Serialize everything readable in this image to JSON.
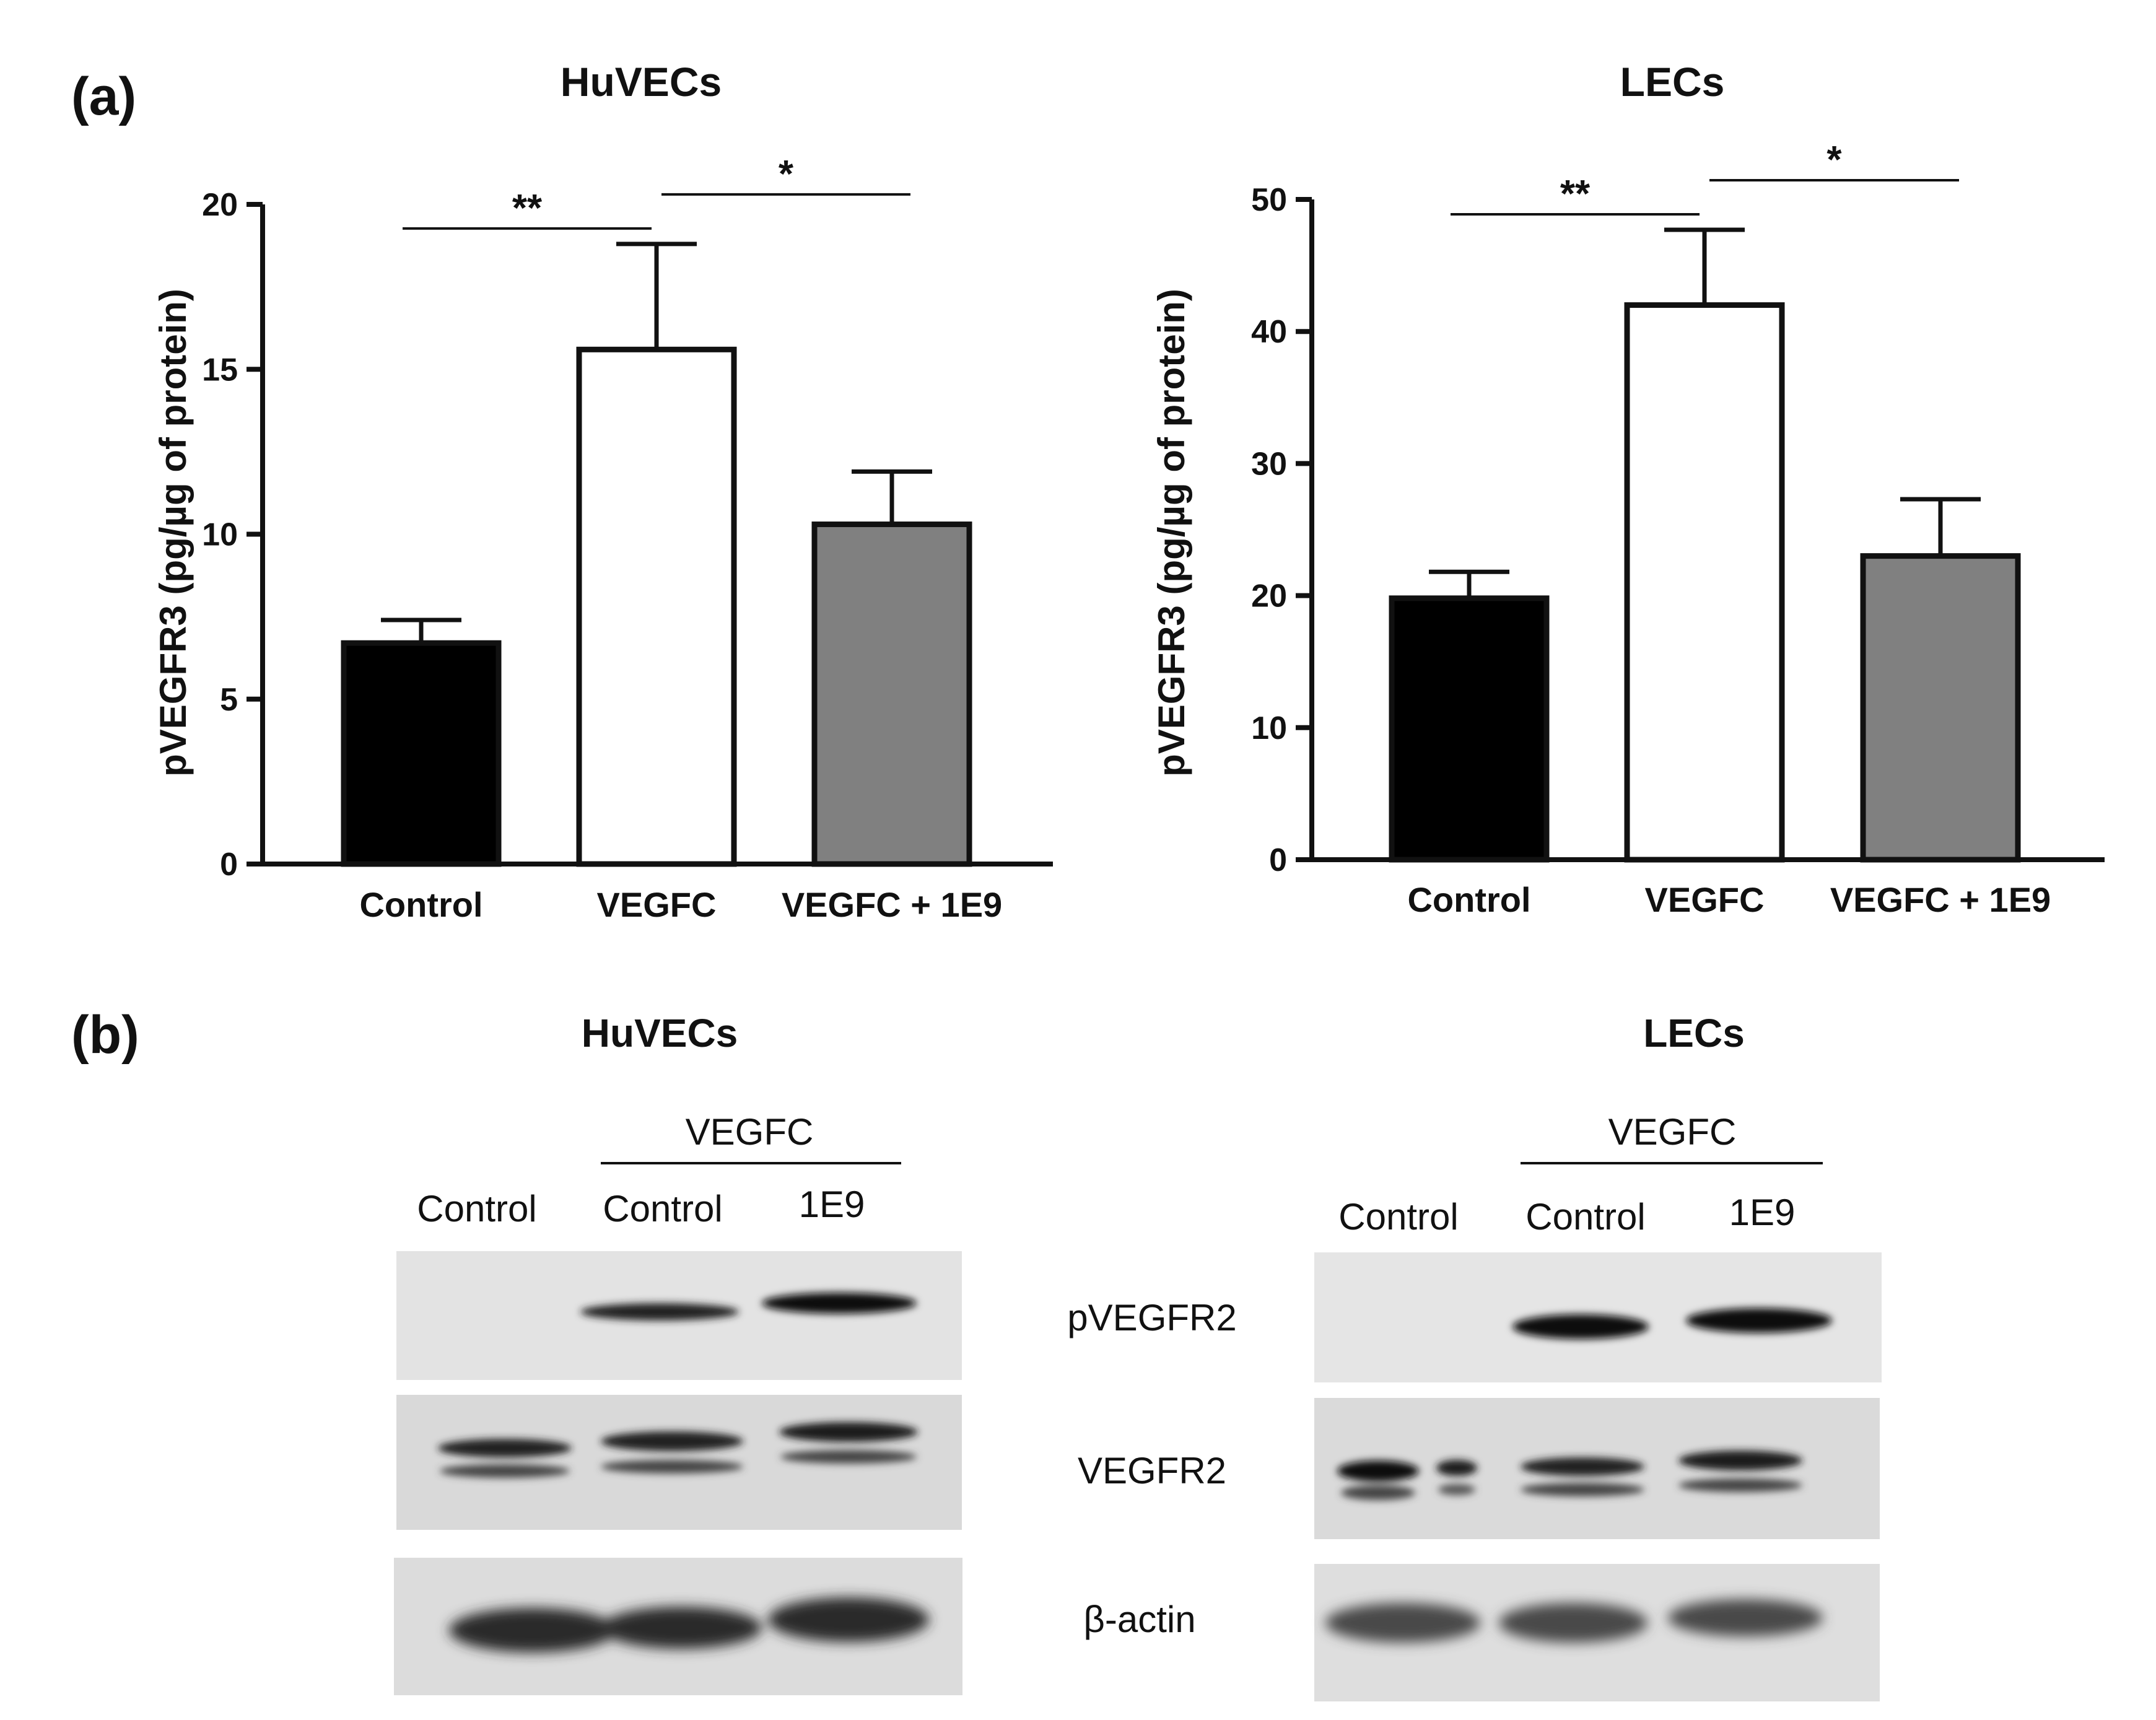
{
  "panel_a_label": "(a)",
  "panel_b_label": "(b)",
  "chart_data": [
    {
      "type": "bar",
      "title": "HuVECs",
      "ylabel": "pVEGFR3 (pg/µg of protein)",
      "xlabel": "",
      "categories": [
        "Control",
        "VEGFC",
        "VEGFC + 1E9"
      ],
      "values": [
        6.7,
        15.6,
        10.3
      ],
      "errors": [
        0.7,
        3.2,
        1.6
      ],
      "bar_colors": [
        "#000000",
        "#ffffff",
        "#808080"
      ],
      "ylim": [
        0,
        20
      ],
      "yticks": [
        0,
        5,
        10,
        15,
        20
      ],
      "grid": false,
      "significance": [
        {
          "from": 0,
          "to": 1,
          "label": "**"
        },
        {
          "from": 1,
          "to": 2,
          "label": "*"
        }
      ]
    },
    {
      "type": "bar",
      "title": "LECs",
      "ylabel": "pVEGFR3 (pg/µg of protein)",
      "xlabel": "",
      "categories": [
        "Control",
        "VEGFC",
        "VEGFC + 1E9"
      ],
      "values": [
        19.8,
        42.0,
        23.0
      ],
      "errors": [
        2.0,
        5.7,
        4.3
      ],
      "bar_colors": [
        "#000000",
        "#ffffff",
        "#808080"
      ],
      "ylim": [
        0,
        50
      ],
      "yticks": [
        0,
        10,
        20,
        30,
        40,
        50
      ],
      "grid": false,
      "significance": [
        {
          "from": 0,
          "to": 1,
          "label": "**"
        },
        {
          "from": 1,
          "to": 2,
          "label": "*"
        }
      ]
    }
  ],
  "blots": {
    "huvecs_title": "HuVECs",
    "lecs_title": "LECs",
    "treatment_label": "VEGFC",
    "lanes": [
      "Control",
      "Control",
      "1E9"
    ],
    "rows": [
      "pVEGFR2",
      "VEGFR2",
      "β-actin"
    ]
  }
}
